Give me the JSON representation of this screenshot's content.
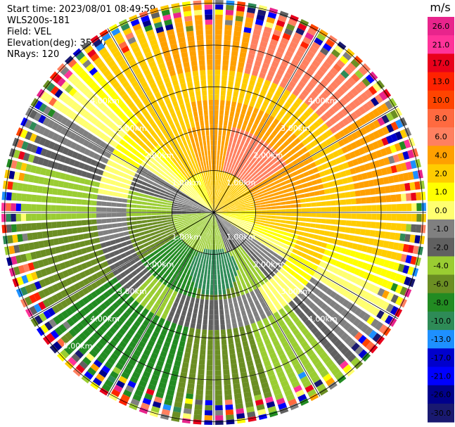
{
  "header": {
    "start_time": "Start time: 2023/08/01 08:49:59",
    "instrument": "WLS200s-181",
    "field": "Field: VEL",
    "elevation": "Elevation(deg): 35.30",
    "nrays": "NRays: 120"
  },
  "chart_data": {
    "type": "heatmap",
    "subtype": "radar-ppi",
    "field": "VEL",
    "units": "m/s",
    "n_rays": 120,
    "elevation_deg": 35.3,
    "range_rings_km": [
      1,
      2,
      3,
      4,
      5
    ],
    "range_ring_labels": [
      "1.00km",
      "2.00km",
      "3.00km",
      "4.00km",
      "5.00km"
    ],
    "radial_lines_deg": [
      0,
      30,
      60,
      90,
      120,
      150,
      180,
      210,
      240,
      270,
      300,
      330
    ],
    "colorbar": {
      "title": "m/s",
      "tick_labels": [
        "26.0",
        "21.0",
        "17.0",
        "13.0",
        "10.0",
        "8.0",
        "6.0",
        "4.0",
        "2.0",
        "1.0",
        "0.0",
        "-1.0",
        "-2.0",
        "-4.0",
        "-6.0",
        "-8.0",
        "-10.0",
        "-13.0",
        "-17.0",
        "-21.0",
        "-26.0",
        "-30.0"
      ],
      "colors": [
        "#e8248c",
        "#ff3399",
        "#e8001b",
        "#ff2200",
        "#ff4400",
        "#ff6a40",
        "#ff8060",
        "#ffa000",
        "#ffcc00",
        "#ffff00",
        "#ffff70",
        "#808080",
        "#606060",
        "#9acd32",
        "#6b8e23",
        "#228b22",
        "#2e8b57",
        "#1e90ff",
        "#0000cd",
        "#0000ff",
        "#00008b",
        "#191970"
      ]
    },
    "pattern_description_values": {
      "north_sector_velocity_ms": 2.0,
      "northeast_sector_velocity_ms": 5.0,
      "center_north_velocity_ms": 7.0,
      "south_sector_velocity_ms": -5.0,
      "southwest_core_velocity_ms": -9.0,
      "west_sector_velocity_ms": -3.0
    }
  }
}
